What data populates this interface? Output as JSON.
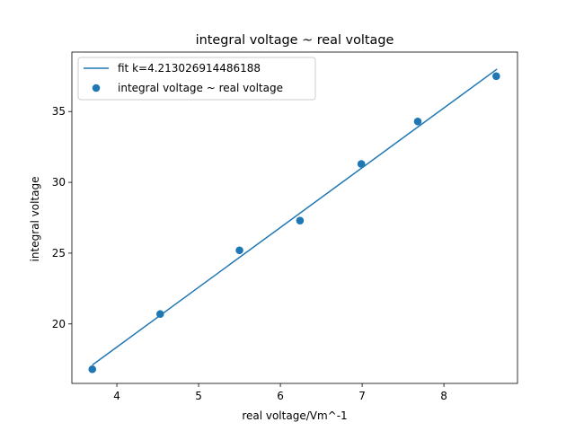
{
  "chart_data": {
    "type": "scatter",
    "title": "integral voltage ~ real voltage",
    "xlabel": "real voltage/Vm^-1",
    "ylabel": "integral voltage",
    "xlim": [
      3.45,
      8.9
    ],
    "ylim": [
      15.8,
      39.2
    ],
    "xticks": [
      4,
      5,
      6,
      7,
      8
    ],
    "yticks": [
      20,
      25,
      30,
      35
    ],
    "grid": false,
    "legend_position": "top-left",
    "series": [
      {
        "name": "fit k=4.213026914486188",
        "kind": "line",
        "color": "#1f77b4",
        "x": [
          3.7,
          8.65
        ],
        "y": [
          17.1,
          38.0
        ]
      },
      {
        "name": "integral voltage ~ real voltage",
        "kind": "scatter",
        "color": "#1f77b4",
        "x": [
          3.7,
          4.53,
          5.5,
          6.24,
          6.99,
          7.68,
          8.64
        ],
        "y": [
          16.8,
          20.7,
          25.2,
          27.3,
          31.3,
          34.3,
          37.5
        ]
      }
    ]
  }
}
